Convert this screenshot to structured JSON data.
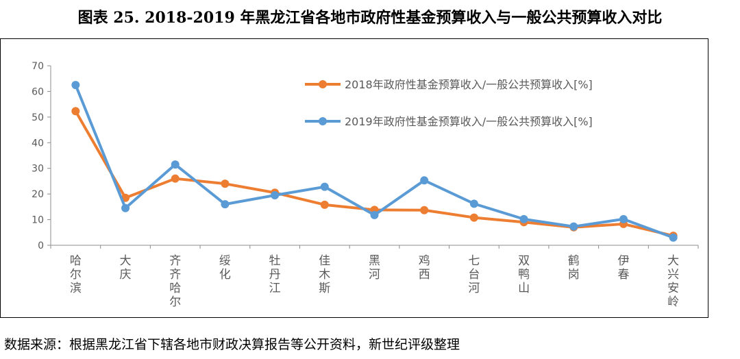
{
  "title": "图表 25. 2018-2019 年黑龙江省各地市政府性基金预算收入与一般公共预算收入对比",
  "source": "数据来源：根据黑龙江省下辖各地市财政决算报告等公开资料，新世纪评级整理",
  "chart_data": {
    "type": "line",
    "categories": [
      "哈尔滨",
      "大庆",
      "齐齐哈尔",
      "绥化",
      "牡丹江",
      "佳木斯",
      "黑河",
      "鸡西",
      "七台河",
      "双鸭山",
      "鹤岗",
      "伊春",
      "大兴安岭"
    ],
    "series": [
      {
        "name": "2018年政府性基金预算收入/一般公共预算收入[%]",
        "color": "#ED7D31",
        "values": [
          52.3,
          18.5,
          26.0,
          24.0,
          20.5,
          15.8,
          13.8,
          13.7,
          10.8,
          9.0,
          7.0,
          8.3,
          3.7
        ]
      },
      {
        "name": "2019年政府性基金预算收入/一般公共预算收入[%]",
        "color": "#5B9BD5",
        "values": [
          62.5,
          14.5,
          31.5,
          16.0,
          19.5,
          22.8,
          11.8,
          25.3,
          16.2,
          10.2,
          7.3,
          10.2,
          3.0
        ]
      }
    ],
    "yticks": [
      "0",
      "10",
      "20",
      "30",
      "40",
      "50",
      "60",
      "70"
    ],
    "ylim": [
      0,
      70
    ],
    "grid": false,
    "legend": "top-right"
  }
}
